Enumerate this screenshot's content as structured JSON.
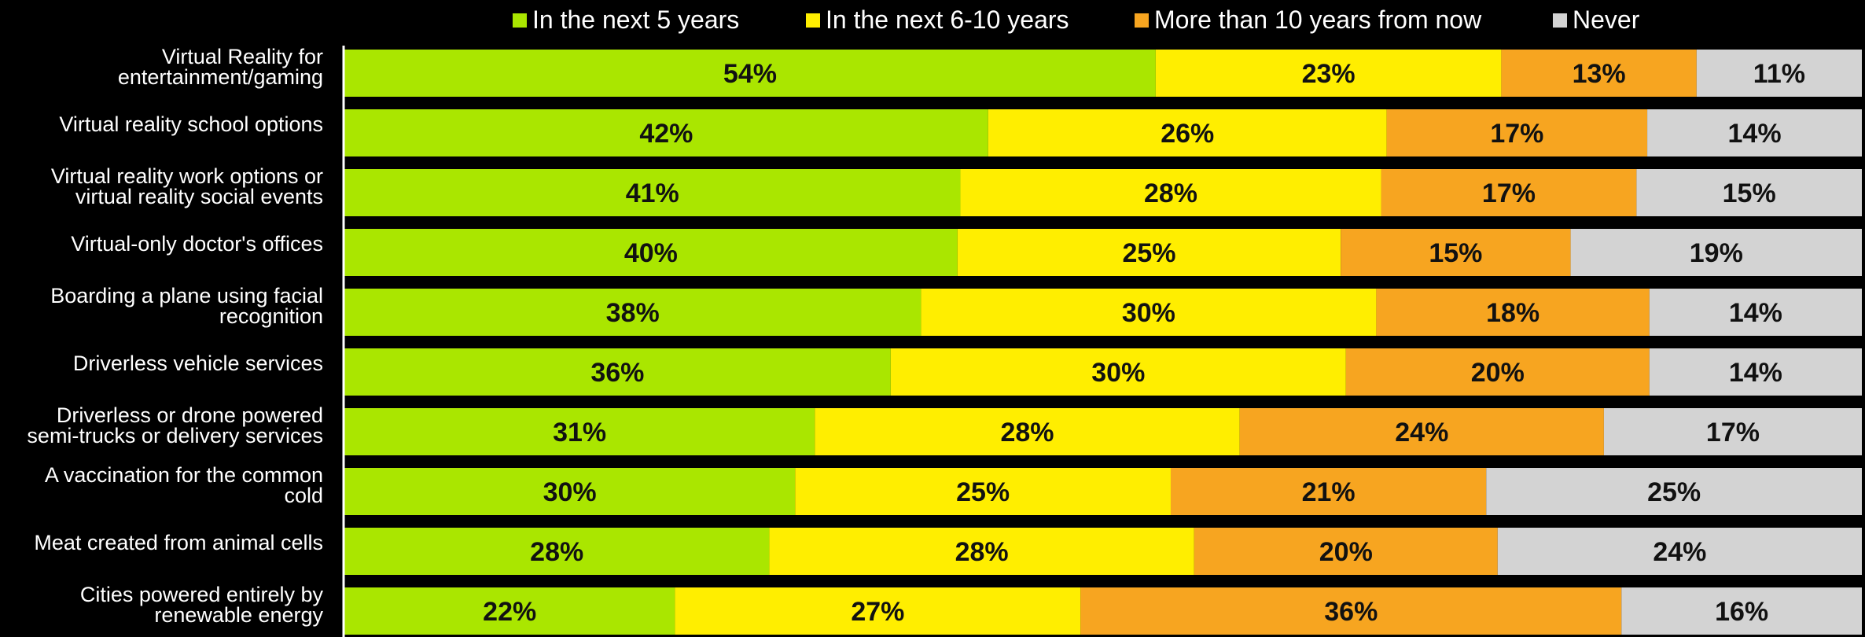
{
  "chart_data": {
    "type": "bar",
    "orientation": "horizontal",
    "stacked": true,
    "categories": [
      [
        "Virtual Reality for",
        "entertainment/gaming"
      ],
      [
        "Virtual reality school options"
      ],
      [
        "Virtual reality work options or",
        "virtual reality social events"
      ],
      [
        "Virtual-only doctor's offices"
      ],
      [
        "Boarding a plane using facial",
        "recognition"
      ],
      [
        "Driverless vehicle services"
      ],
      [
        "Driverless or drone powered",
        "semi-trucks or delivery services"
      ],
      [
        "A vaccination for the common",
        "cold"
      ],
      [
        "Meat created from animal cells"
      ],
      [
        "Cities powered entirely by",
        "renewable energy"
      ]
    ],
    "series": [
      {
        "name": "In the next 5 years",
        "color": "#aae600",
        "values": [
          54,
          42,
          41,
          40,
          38,
          36,
          31,
          30,
          28,
          22
        ]
      },
      {
        "name": "In the next 6-10 years",
        "color": "#ffee00",
        "values": [
          23,
          26,
          28,
          25,
          30,
          30,
          28,
          25,
          28,
          27
        ]
      },
      {
        "name": "More than 10 years from now",
        "color": "#f7a520",
        "values": [
          13,
          17,
          17,
          15,
          18,
          20,
          24,
          21,
          20,
          36
        ]
      },
      {
        "name": "Never",
        "color": "#d3d3d3",
        "values": [
          11,
          14,
          15,
          19,
          14,
          14,
          17,
          25,
          24,
          16
        ]
      }
    ],
    "value_suffix": "%",
    "legend": "top",
    "grid": false,
    "background": "#000000"
  }
}
